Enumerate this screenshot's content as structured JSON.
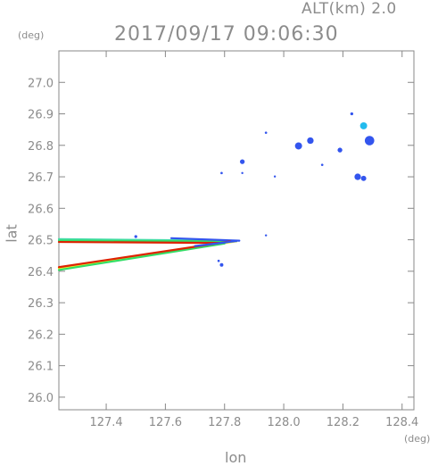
{
  "header": {
    "altitude_label": "ALT(km) 2.0",
    "timestamp": "2017/09/17 09:06:30"
  },
  "axes": {
    "y_unit": "(deg)",
    "x_unit": "(deg)",
    "x_label": "lon",
    "y_label": "lat"
  },
  "chart_data": {
    "type": "scatter",
    "title": "2017/09/17 09:06:30",
    "subtitle": "ALT(km) 2.0",
    "xlabel": "lon",
    "ylabel": "lat",
    "xlim": [
      127.24,
      128.44
    ],
    "ylim": [
      25.96,
      27.1
    ],
    "x_ticks": [
      127.4,
      127.6,
      127.8,
      128.0,
      128.2,
      128.4
    ],
    "x_tick_labels": [
      "127.4",
      "127.6",
      "127.8",
      "128.0",
      "128.2",
      "128.4"
    ],
    "y_ticks": [
      26.0,
      26.1,
      26.2,
      26.3,
      26.4,
      26.5,
      26.6,
      26.7,
      26.8,
      26.9,
      27.0
    ],
    "y_tick_labels": [
      "26.0",
      "26.1",
      "26.2",
      "26.3",
      "26.4",
      "26.5",
      "26.6",
      "26.7",
      "26.8",
      "26.9",
      "27.0"
    ],
    "grid": false,
    "colors": {
      "blue": "#3355ee",
      "cyan": "#22bbee",
      "green": "#33dd66",
      "yellow": "#eeee22",
      "red": "#dd2200",
      "teal": "#44ddaa"
    },
    "echo_streaks": [
      {
        "from": [
          127.24,
          26.502
        ],
        "to": [
          127.84,
          26.497
        ],
        "color": "teal"
      },
      {
        "from": [
          127.24,
          26.497
        ],
        "to": [
          127.84,
          26.495
        ],
        "color": "green"
      },
      {
        "from": [
          127.24,
          26.493
        ],
        "to": [
          127.78,
          26.49
        ],
        "color": "red"
      },
      {
        "from": [
          127.62,
          26.505
        ],
        "to": [
          127.85,
          26.497
        ],
        "color": "blue"
      },
      {
        "from": [
          127.24,
          26.41
        ],
        "to": [
          127.84,
          26.495
        ],
        "color": "yellow"
      },
      {
        "from": [
          127.24,
          26.404
        ],
        "to": [
          127.8,
          26.488
        ],
        "color": "green"
      },
      {
        "from": [
          127.24,
          26.413
        ],
        "to": [
          127.82,
          26.495
        ],
        "color": "red"
      },
      {
        "from": [
          127.7,
          26.48
        ],
        "to": [
          127.84,
          26.496
        ],
        "color": "blue"
      }
    ],
    "echo_cells": [
      {
        "lon": 128.27,
        "lat": 26.862,
        "r": 0.012,
        "color": "cyan"
      },
      {
        "lon": 128.29,
        "lat": 26.815,
        "r": 0.016,
        "color": "blue"
      },
      {
        "lon": 128.09,
        "lat": 26.815,
        "r": 0.011,
        "color": "blue"
      },
      {
        "lon": 128.05,
        "lat": 26.798,
        "r": 0.012,
        "color": "blue"
      },
      {
        "lon": 128.19,
        "lat": 26.785,
        "r": 0.008,
        "color": "blue"
      },
      {
        "lon": 128.25,
        "lat": 26.7,
        "r": 0.011,
        "color": "blue"
      },
      {
        "lon": 128.27,
        "lat": 26.695,
        "r": 0.009,
        "color": "blue"
      },
      {
        "lon": 127.86,
        "lat": 26.748,
        "r": 0.008,
        "color": "blue"
      },
      {
        "lon": 128.23,
        "lat": 26.9,
        "r": 0.005,
        "color": "blue"
      },
      {
        "lon": 128.13,
        "lat": 26.738,
        "r": 0.004,
        "color": "blue"
      },
      {
        "lon": 127.94,
        "lat": 26.84,
        "r": 0.004,
        "color": "blue"
      },
      {
        "lon": 127.79,
        "lat": 26.712,
        "r": 0.004,
        "color": "blue"
      },
      {
        "lon": 127.86,
        "lat": 26.712,
        "r": 0.003,
        "color": "blue"
      },
      {
        "lon": 127.97,
        "lat": 26.701,
        "r": 0.003,
        "color": "blue"
      },
      {
        "lon": 127.94,
        "lat": 26.514,
        "r": 0.003,
        "color": "blue"
      },
      {
        "lon": 127.79,
        "lat": 26.42,
        "r": 0.006,
        "color": "blue"
      },
      {
        "lon": 127.78,
        "lat": 26.433,
        "r": 0.004,
        "color": "blue"
      },
      {
        "lon": 127.5,
        "lat": 26.51,
        "r": 0.005,
        "color": "blue"
      }
    ]
  }
}
